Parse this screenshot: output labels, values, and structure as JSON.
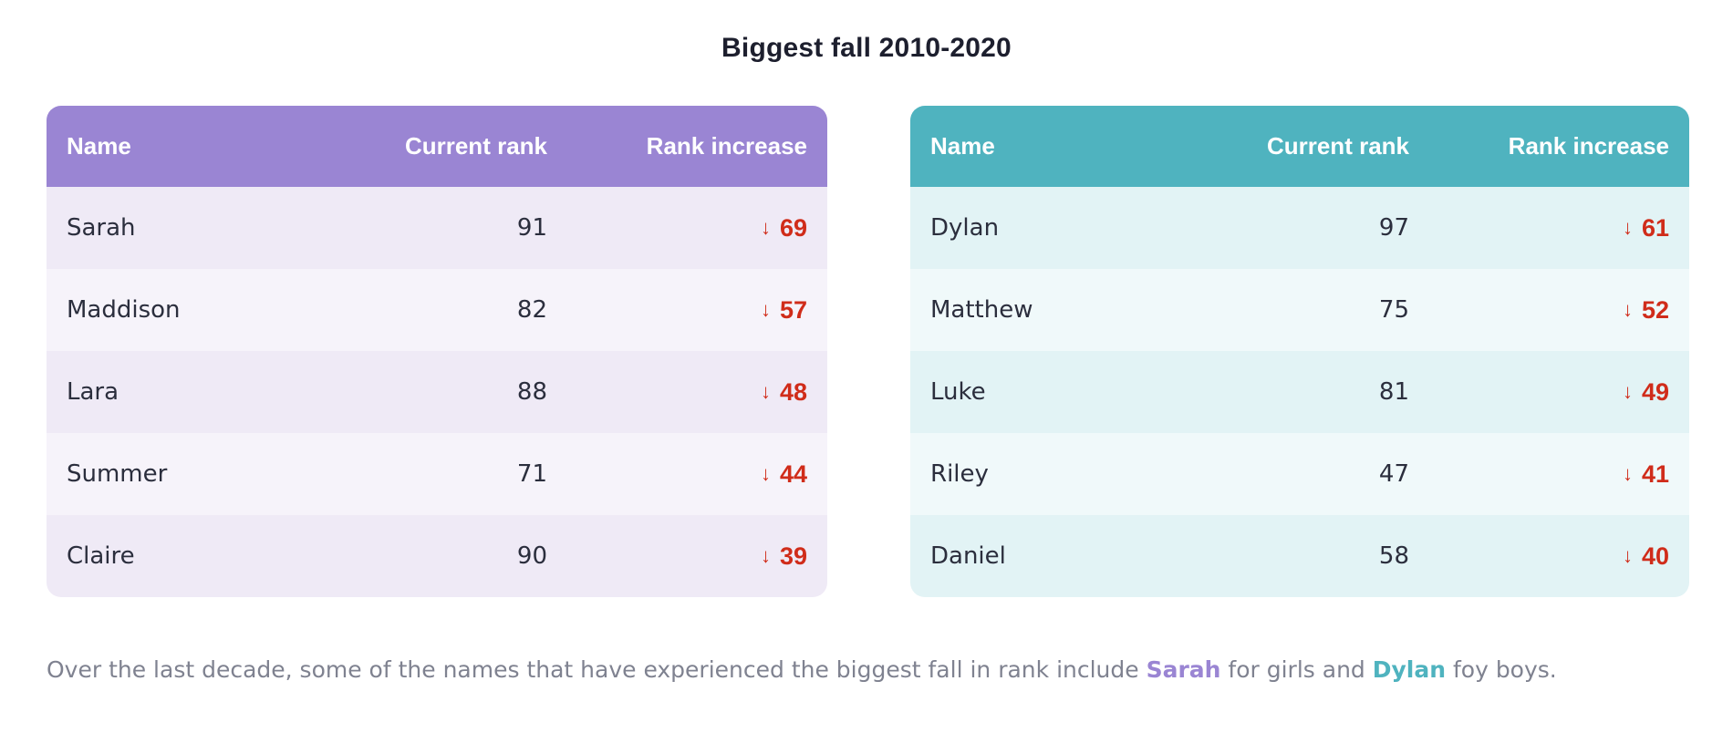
{
  "title": "Biggest fall 2010-2020",
  "columns": {
    "name": "Name",
    "current_rank": "Current rank",
    "rank_increase": "Rank increase"
  },
  "arrow_glyph": "↓",
  "girls": {
    "accent_color": "#9a85d3",
    "rows": [
      {
        "name": "Sarah",
        "current_rank": "91",
        "change": "69"
      },
      {
        "name": "Maddison",
        "current_rank": "82",
        "change": "57"
      },
      {
        "name": "Lara",
        "current_rank": "88",
        "change": "48"
      },
      {
        "name": "Summer",
        "current_rank": "71",
        "change": "44"
      },
      {
        "name": "Claire",
        "current_rank": "90",
        "change": "39"
      }
    ]
  },
  "boys": {
    "accent_color": "#4fb3bf",
    "rows": [
      {
        "name": "Dylan",
        "current_rank": "97",
        "change": "61"
      },
      {
        "name": "Matthew",
        "current_rank": "75",
        "change": "52"
      },
      {
        "name": "Luke",
        "current_rank": "81",
        "change": "49"
      },
      {
        "name": "Riley",
        "current_rank": "47",
        "change": "41"
      },
      {
        "name": "Daniel",
        "current_rank": "58",
        "change": "40"
      }
    ]
  },
  "caption": {
    "part1": "Over the last decade, some of the names that have experienced the biggest fall in rank include ",
    "girl_name": "Sarah",
    "part2": " for girls and ",
    "boy_name": "Dylan",
    "part3": " foy boys."
  },
  "decline_color": "#d02c1a"
}
